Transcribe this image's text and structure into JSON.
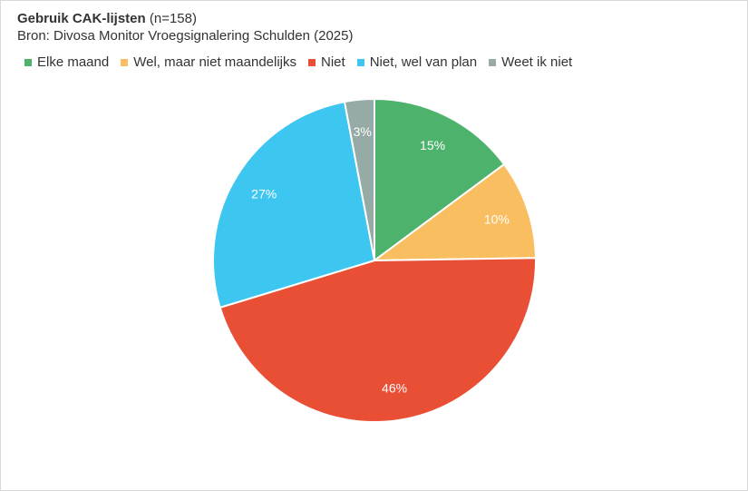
{
  "header": {
    "title": "Gebruik CAK-lijsten",
    "title_suffix": "(n=158)",
    "subtitle": "Bron: Divosa Monitor Vroegsignalering Schulden (2025)"
  },
  "chart_data": {
    "type": "pie",
    "title": "Gebruik CAK-lijsten (n=158)",
    "subtitle": "Bron: Divosa Monitor Vroegsignalering Schulden (2025)",
    "legend_position": "top-left",
    "start_angle_deg": 0,
    "direction": "clockwise",
    "slices": [
      {
        "name": "Elke maand",
        "value": 15,
        "label": "15%",
        "color": "#4db36c"
      },
      {
        "name": "Wel, maar niet maandelijks",
        "value": 10,
        "label": "10%",
        "color": "#f9be5f"
      },
      {
        "name": "Niet",
        "value": 46,
        "label": "46%",
        "color": "#e94f35"
      },
      {
        "name": "Niet, wel van plan",
        "value": 27,
        "label": "27%",
        "color": "#3dc6f0"
      },
      {
        "name": "Weet ik niet",
        "value": 3,
        "label": "3%",
        "color": "#96aba5"
      }
    ]
  }
}
